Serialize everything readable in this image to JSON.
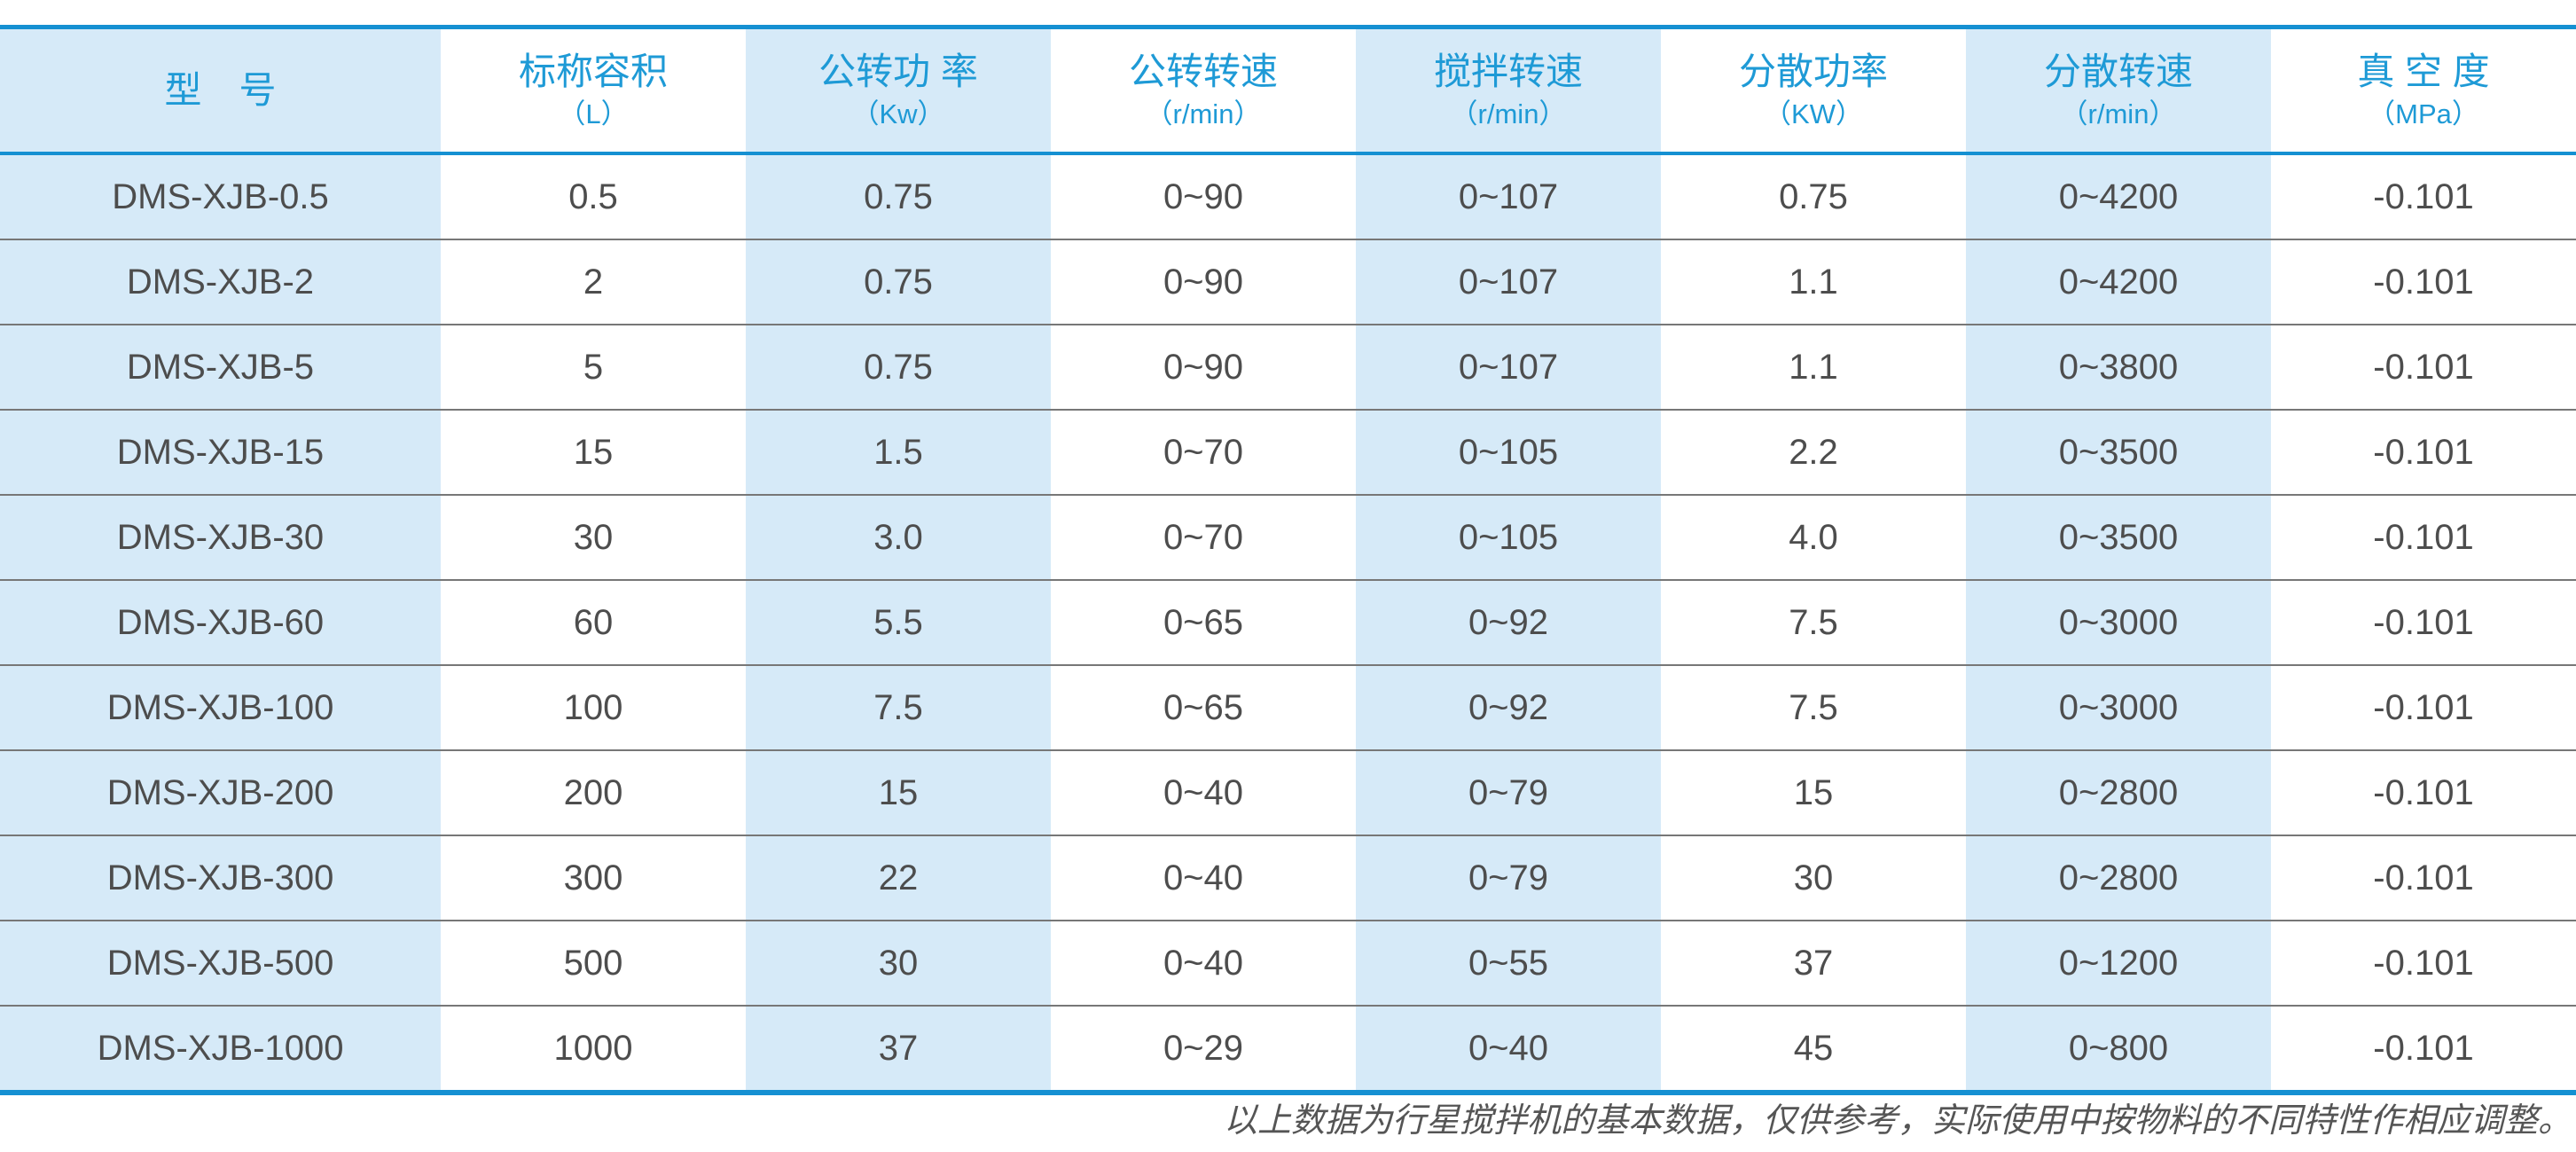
{
  "table": {
    "columns": [
      {
        "title": "型　号",
        "unit": ""
      },
      {
        "title": "标称容积",
        "unit": "（L）"
      },
      {
        "title": "公转功 率",
        "unit": "（Kw）"
      },
      {
        "title": "公转转速",
        "unit": "（r/min）"
      },
      {
        "title": "搅拌转速",
        "unit": "（r/min）"
      },
      {
        "title": "分散功率",
        "unit": "（KW）"
      },
      {
        "title": "分散转速",
        "unit": "（r/min）"
      },
      {
        "title": "真 空 度",
        "unit": "（MPa）"
      }
    ],
    "rows": [
      [
        "DMS-XJB-0.5",
        "0.5",
        "0.75",
        "0~90",
        "0~107",
        "0.75",
        "0~4200",
        "-0.101"
      ],
      [
        "DMS-XJB-2",
        "2",
        "0.75",
        "0~90",
        "0~107",
        "1.1",
        "0~4200",
        "-0.101"
      ],
      [
        "DMS-XJB-5",
        "5",
        "0.75",
        "0~90",
        "0~107",
        "1.1",
        "0~3800",
        "-0.101"
      ],
      [
        "DMS-XJB-15",
        "15",
        "1.5",
        "0~70",
        "0~105",
        "2.2",
        "0~3500",
        "-0.101"
      ],
      [
        "DMS-XJB-30",
        "30",
        "3.0",
        "0~70",
        "0~105",
        "4.0",
        "0~3500",
        "-0.101"
      ],
      [
        "DMS-XJB-60",
        "60",
        "5.5",
        "0~65",
        "0~92",
        "7.5",
        "0~3000",
        "-0.101"
      ],
      [
        "DMS-XJB-100",
        "100",
        "7.5",
        "0~65",
        "0~92",
        "7.5",
        "0~3000",
        "-0.101"
      ],
      [
        "DMS-XJB-200",
        "200",
        "15",
        "0~40",
        "0~79",
        "15",
        "0~2800",
        "-0.101"
      ],
      [
        "DMS-XJB-300",
        "300",
        "22",
        "0~40",
        "0~79",
        "30",
        "0~2800",
        "-0.101"
      ],
      [
        "DMS-XJB-500",
        "500",
        "30",
        "0~40",
        "0~55",
        "37",
        "0~1200",
        "-0.101"
      ],
      [
        "DMS-XJB-1000",
        "1000",
        "37",
        "0~29",
        "0~40",
        "45",
        "0~800",
        "-0.101"
      ]
    ]
  },
  "footer": {
    "note": "以上数据为行星搅拌机的基本数据，仅供参考，实际使用中按物料的不同特性作相应调整。"
  },
  "colors": {
    "accent_blue": "#1590d2",
    "header_text_blue": "#1e9ad6",
    "tint_blue": "#d6eaf8",
    "body_text": "#4d4d4d",
    "row_divider": "#777777",
    "note_text": "#555555"
  }
}
